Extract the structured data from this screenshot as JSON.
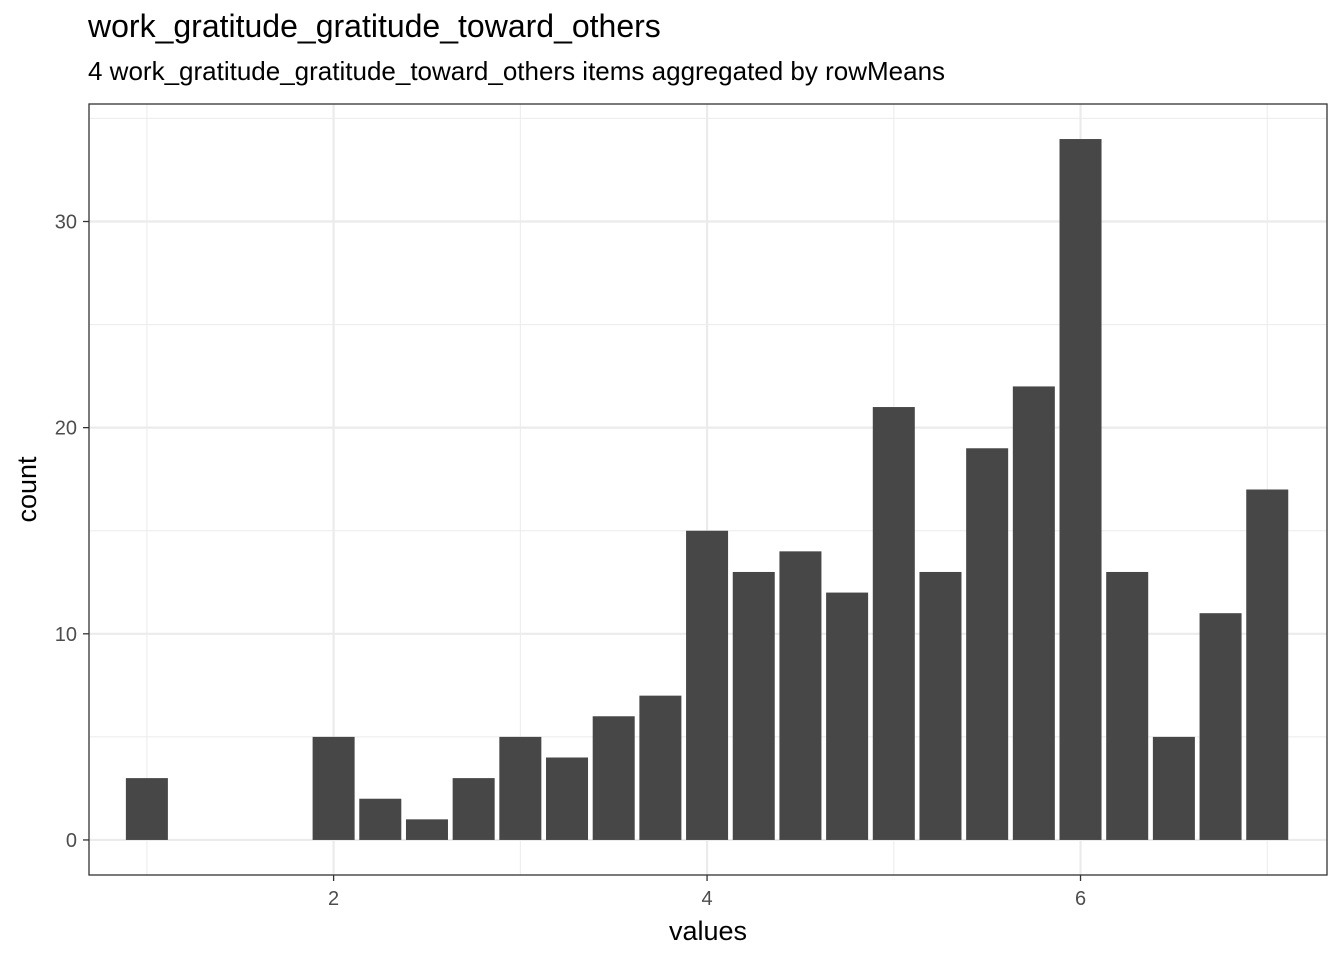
{
  "chart_data": {
    "type": "bar",
    "title": "work_gratitude_gratitude_toward_others",
    "subtitle": "4 work_gratitude_gratitude_toward_others items aggregated by rowMeans",
    "xlabel": "values",
    "ylabel": "count",
    "x": [
      1.0,
      2.0,
      2.25,
      2.5,
      2.75,
      3.0,
      3.25,
      3.5,
      3.75,
      4.0,
      4.25,
      4.5,
      4.75,
      5.0,
      5.25,
      5.5,
      5.75,
      6.0,
      6.25,
      6.5,
      6.75,
      7.0
    ],
    "values": [
      3,
      5,
      2,
      1,
      3,
      5,
      4,
      6,
      7,
      15,
      13,
      14,
      12,
      21,
      13,
      19,
      22,
      34,
      13,
      5,
      11,
      17
    ],
    "bar_width": 0.225,
    "xlim": [
      0.69,
      7.32
    ],
    "ylim": [
      -1.7,
      35.7
    ],
    "x_ticks": [
      2,
      4,
      6
    ],
    "x_tick_labels": [
      "2",
      "4",
      "6"
    ],
    "y_ticks": [
      0,
      10,
      20,
      30
    ],
    "y_tick_labels": [
      "0",
      "10",
      "20",
      "30"
    ],
    "grid": true,
    "bar_color": "#474747",
    "grid_color": "#ebebeb"
  }
}
